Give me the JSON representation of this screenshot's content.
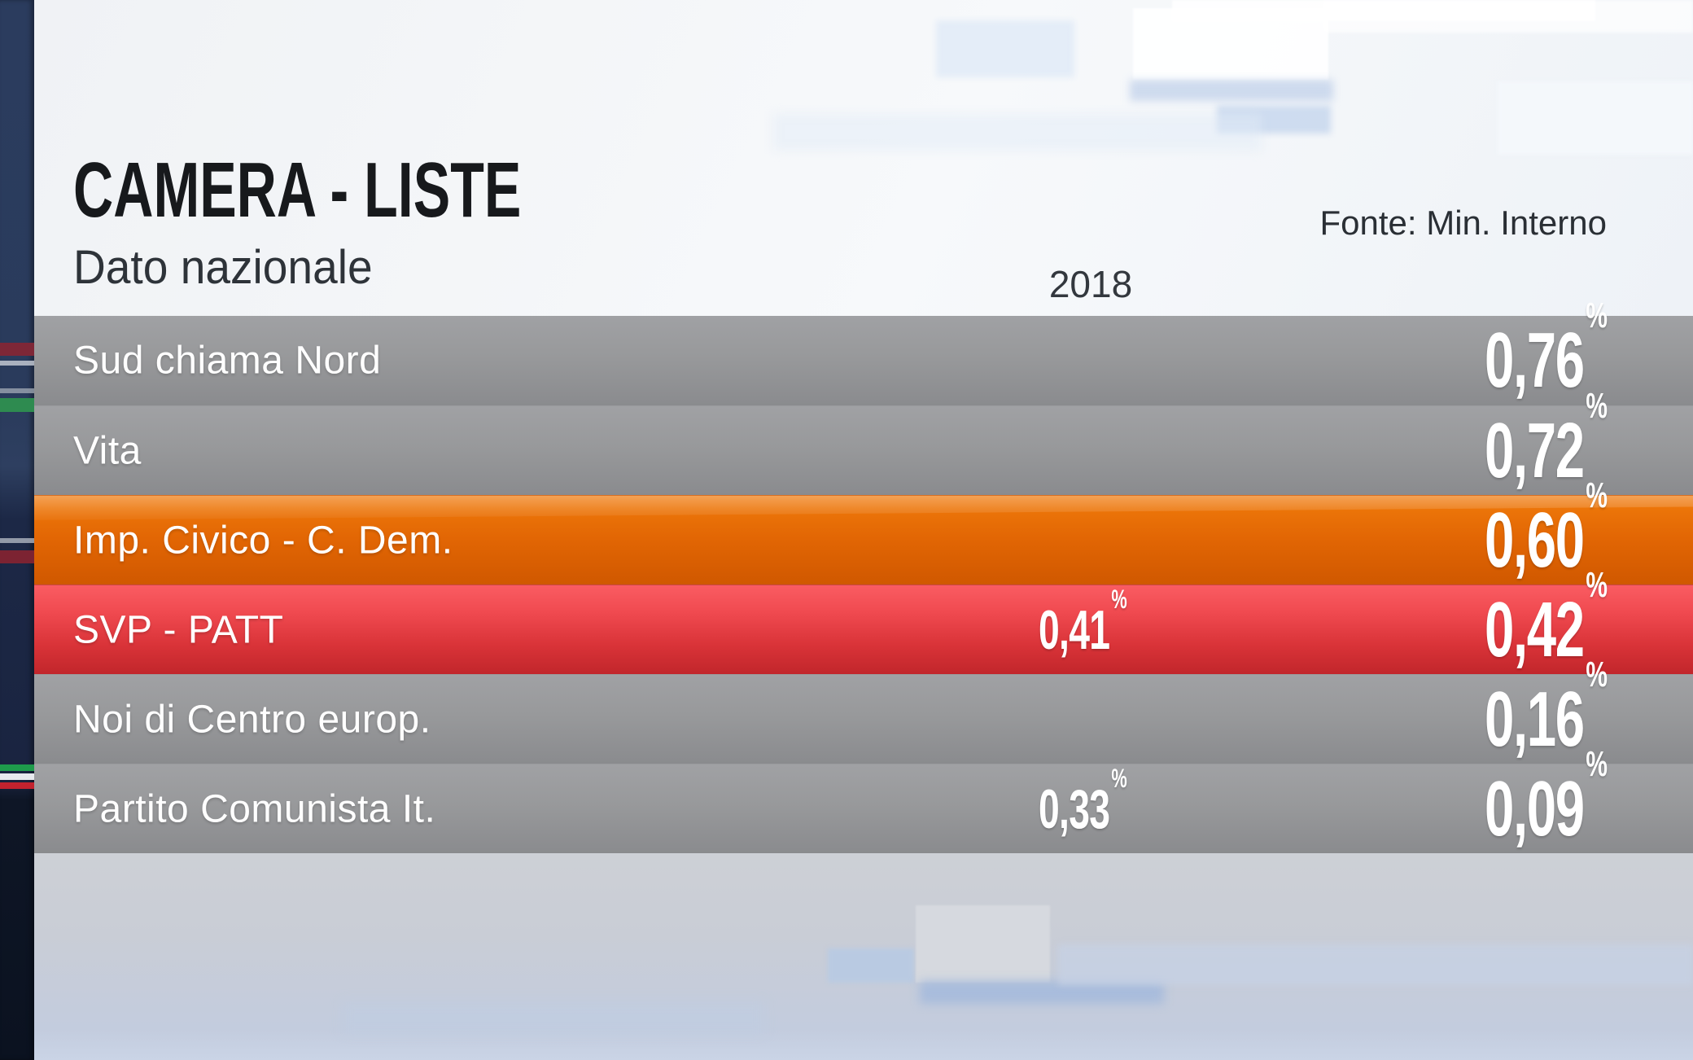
{
  "header": {
    "title": "CAMERA - LISTE",
    "subtitle": "Dato nazionale",
    "source": "Fonte: Min. Interno",
    "year_column": "2018"
  },
  "table": {
    "percent_sign": "%",
    "rows": [
      {
        "label": "Sud chiama Nord",
        "value_2018": "",
        "value": "0,76",
        "color": "gray"
      },
      {
        "label": "Vita",
        "value_2018": "",
        "value": "0,72",
        "color": "gray"
      },
      {
        "label": "Imp. Civico - C. Dem.",
        "value_2018": "",
        "value": "0,60",
        "color": "orange"
      },
      {
        "label": "SVP - PATT",
        "value_2018": "0,41",
        "value": "0,42",
        "color": "red"
      },
      {
        "label": "Noi di Centro europ.",
        "value_2018": "",
        "value": "0,16",
        "color": "gray"
      },
      {
        "label": "Partito Comunista It.",
        "value_2018": "0,33",
        "value": "0,09",
        "color": "gray"
      }
    ]
  },
  "chart_data": {
    "type": "table",
    "title": "CAMERA - LISTE",
    "subtitle": "Dato nazionale",
    "source": "Fonte: Min. Interno",
    "unit": "%",
    "columns": [
      "2018",
      "current"
    ],
    "rows": [
      {
        "party": "Sud chiama Nord",
        "y2018": null,
        "current": 0.76,
        "row_color": "gray"
      },
      {
        "party": "Vita",
        "y2018": null,
        "current": 0.72,
        "row_color": "gray"
      },
      {
        "party": "Imp. Civico - C. Dem.",
        "y2018": null,
        "current": 0.6,
        "row_color": "orange"
      },
      {
        "party": "SVP - PATT",
        "y2018": 0.41,
        "current": 0.42,
        "row_color": "red"
      },
      {
        "party": "Noi di Centro europ.",
        "y2018": null,
        "current": 0.16,
        "row_color": "gray"
      },
      {
        "party": "Partito Comunista It.",
        "y2018": 0.33,
        "current": 0.09,
        "row_color": "gray"
      }
    ]
  },
  "theme": {
    "row_gray": "#949597",
    "row_orange": "#e26604",
    "row_red": "#d93338",
    "strip_navy": "#2b3c5e",
    "text_dark": "#17191c",
    "text_white": "#ffffff"
  }
}
